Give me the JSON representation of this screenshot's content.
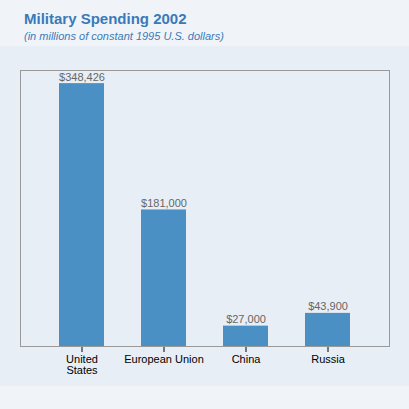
{
  "chart_data": {
    "type": "bar",
    "title": "Military Spending 2002",
    "subtitle": "(in millions of constant 1995 U.S. dollars)",
    "categories": [
      "United\nStates",
      "European Union",
      "China",
      "Russia"
    ],
    "values": [
      348426,
      181000,
      27000,
      43900
    ],
    "value_labels": [
      "$348,426",
      "$181,000",
      "$27,000",
      "$43,900"
    ],
    "data_labels": true,
    "color": "#4a90c4",
    "ylim": [
      0,
      365847.3
    ],
    "tick_labels": "x",
    "grid": false
  }
}
